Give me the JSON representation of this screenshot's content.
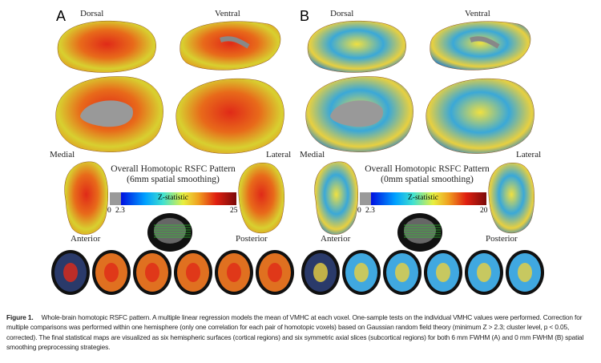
{
  "panels": [
    {
      "letter": "A",
      "dorsal": "Dorsal",
      "ventral": "Ventral",
      "medial": "Medial",
      "lateral": "Lateral",
      "anterior": "Anterior",
      "posterior": "Posterior",
      "title": "Overall Homotopic RSFC Pattern",
      "subtitle": "(6mm spatial smoothing)",
      "colorbar_label": "Z-statistic",
      "tick_min": "0",
      "tick_threshold": "2.3",
      "tick_max": "25"
    },
    {
      "letter": "B",
      "dorsal": "Dorsal",
      "ventral": "Ventral",
      "medial": "Medial",
      "lateral": "Lateral",
      "anterior": "Anterior",
      "posterior": "Posterior",
      "title": "Overall Homotopic RSFC Pattern",
      "subtitle": "(0mm spatial smoothing)",
      "colorbar_label": "Z-statistic",
      "tick_min": "0",
      "tick_threshold": "2.3",
      "tick_max": "20"
    }
  ],
  "colors": {
    "panelA_main": "#e86a1a",
    "panelB_main": "#3aa8d8",
    "medial_wall": "#999999"
  },
  "caption": {
    "label": "Figure 1.",
    "text": "Whole-brain homotopic RSFC pattern. A multiple linear regression models the mean of VMHC at each voxel. One-sample tests on the individual VMHC values were performed. Correction for multiple comparisons was performed within one hemisphere (only one correlation for each pair of homotopic voxels) based on Gaussian random field theory (minimum Z > 2.3; cluster level, p < 0.05, corrected). The final statistical maps are visualized as six hemispheric surfaces (cortical regions) and six symmetric axial slices (subcortical regions) for both 6 mm FWHM (A) and 0 mm FWHM (B) spatial smoothing preprocessing strategies."
  }
}
